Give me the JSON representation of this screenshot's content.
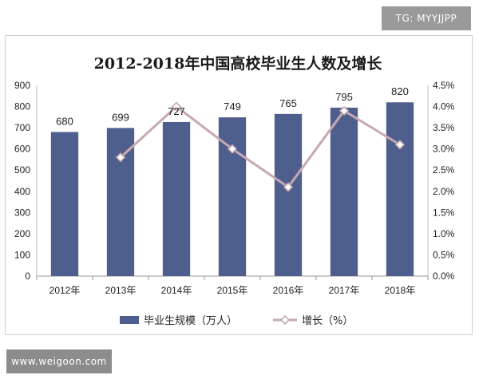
{
  "watermarks": {
    "tg": "TG: MYYJJPP",
    "site": "www.weigoon.com"
  },
  "chart_data": {
    "type": "bar",
    "title": "2012-2018年中国高校毕业生人数及增长",
    "categories": [
      "2012年",
      "2013年",
      "2014年",
      "2015年",
      "2016年",
      "2017年",
      "2018年"
    ],
    "series": [
      {
        "name": "毕业生规模（万人）",
        "type": "bar",
        "axis": "left",
        "values": [
          680,
          699,
          727,
          749,
          765,
          795,
          820
        ],
        "color": "#4e5f8d"
      },
      {
        "name": "增长（%）",
        "type": "line",
        "axis": "right",
        "values": [
          null,
          2.8,
          4.0,
          3.0,
          2.1,
          3.9,
          3.1
        ],
        "color": "#c8a8b0"
      }
    ],
    "y_left": {
      "min": 0,
      "max": 900,
      "step": 100,
      "ticks": [
        "0",
        "100",
        "200",
        "300",
        "400",
        "500",
        "600",
        "700",
        "800",
        "900"
      ]
    },
    "y_right": {
      "min": 0,
      "max": 4.5,
      "step": 0.5,
      "ticks": [
        "0.0%",
        "0.5%",
        "1.0%",
        "1.5%",
        "2.0%",
        "2.5%",
        "3.0%",
        "3.5%",
        "4.0%",
        "4.5%"
      ]
    },
    "data_labels": [
      "680",
      "699",
      "727",
      "749",
      "765",
      "795",
      "820"
    ],
    "legend_position": "bottom",
    "grid": false
  }
}
